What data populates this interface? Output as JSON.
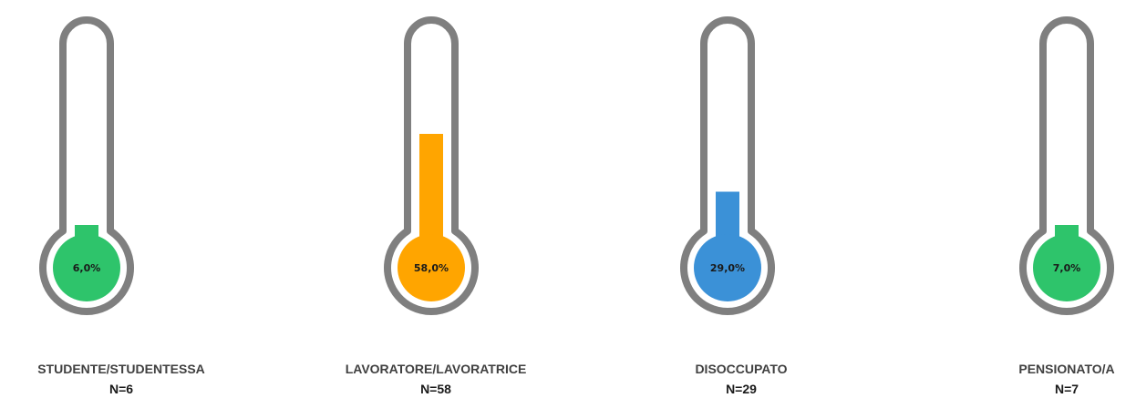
{
  "chart_data": {
    "type": "bar",
    "style": "thermometer",
    "categories": [
      "STUDENTE/STUDENTESSA",
      "LAVORATORE/LAVORATRICE",
      "DISOCCUPATO",
      "PENSIONATO/A"
    ],
    "values": [
      6.0,
      58.0,
      29.0,
      7.0
    ],
    "value_labels": [
      "6,0%",
      "58,0%",
      "29,0%",
      "7,0%"
    ],
    "n_labels": [
      "N=6",
      "N=58",
      "N=29",
      "N=7"
    ],
    "ylim": [
      0,
      100
    ],
    "colors": [
      "#2ec46b",
      "#ffa500",
      "#3b91d7",
      "#2ec46b"
    ],
    "outline_color": "#7f7f7f",
    "title": "",
    "xlabel": "",
    "ylabel": ""
  }
}
